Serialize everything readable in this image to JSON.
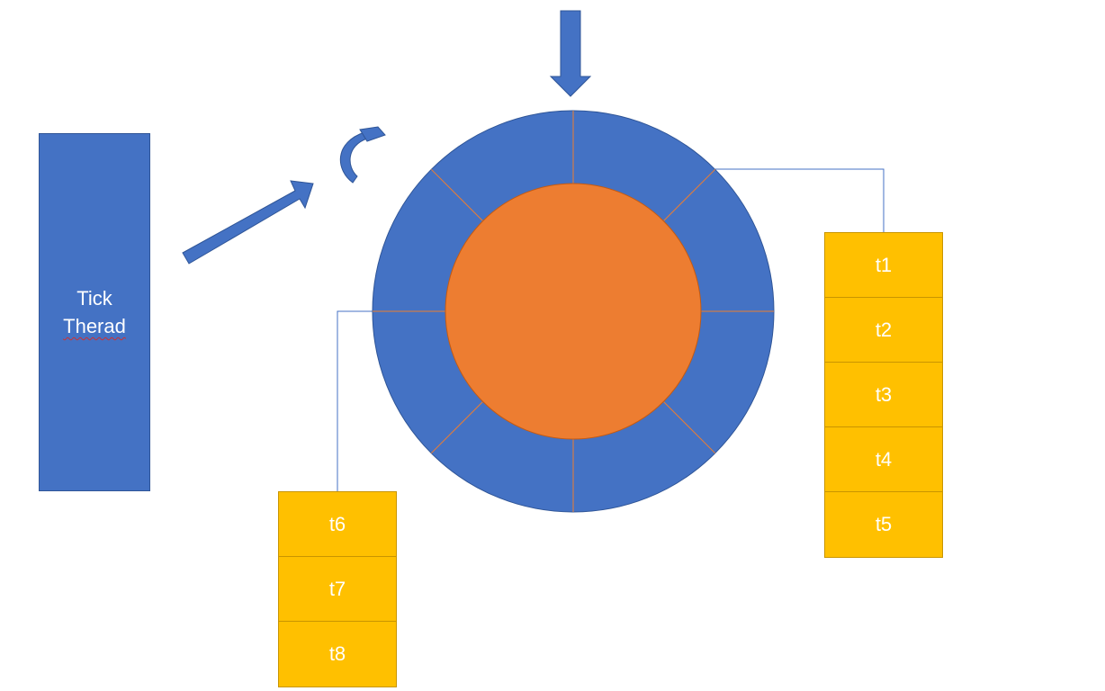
{
  "tick_thread": {
    "line1": "Tick",
    "line2": "Therad"
  },
  "wheel": {
    "slots": 8,
    "ring_color": "#4472c4",
    "hub_color": "#ed7d31",
    "divider_color": "#ed7d31"
  },
  "stack_right": {
    "items": [
      "t1",
      "t2",
      "t3",
      "t4",
      "t5"
    ]
  },
  "stack_left": {
    "items": [
      "t6",
      "t7",
      "t8"
    ]
  },
  "colors": {
    "arrow": "#4472c4",
    "task": "#ffc000",
    "connector": "#4472c4"
  }
}
